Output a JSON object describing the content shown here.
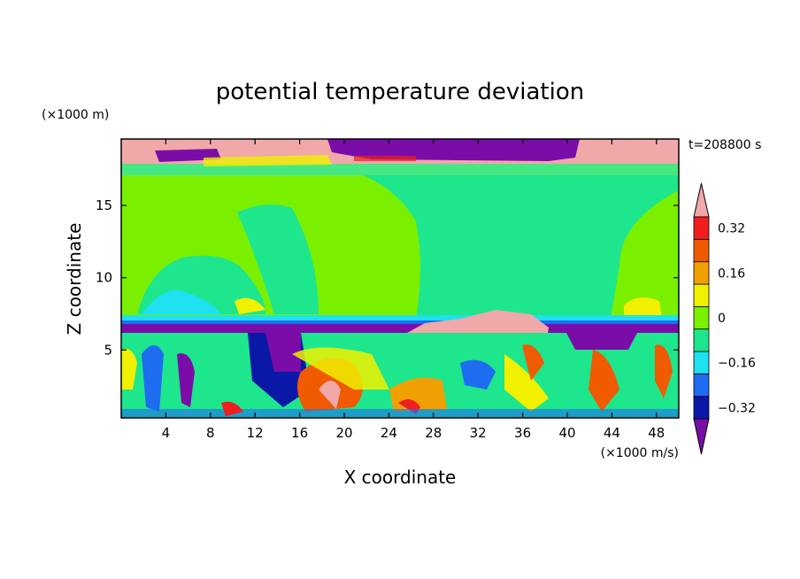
{
  "chart_data": {
    "type": "heatmap",
    "title": "potential temperature deviation",
    "xlabel": "X coordinate",
    "ylabel": "Z coordinate",
    "x_unit": "(×1000 m/s)",
    "y_unit": "(×1000 m)",
    "time_label": "t=208800 s",
    "xlim": [
      0,
      50
    ],
    "ylim": [
      0.3,
      19.6
    ],
    "x_ticks": [
      4,
      8,
      12,
      16,
      20,
      24,
      28,
      32,
      36,
      40,
      44,
      48
    ],
    "y_ticks": [
      5,
      10,
      15
    ],
    "colorbar": {
      "levels": [
        -0.4,
        -0.32,
        -0.24,
        -0.16,
        -0.08,
        0,
        0.08,
        0.16,
        0.24,
        0.32,
        0.4
      ],
      "labeled_values": [
        0.32,
        0.16,
        0,
        -0.16,
        -0.32
      ],
      "labels": [
        "0.32",
        "0.16",
        "0",
        "−0.16",
        "−0.32"
      ],
      "colors": [
        "#7a0da8",
        "#0a18a8",
        "#1e6cf0",
        "#1ee0f0",
        "#1ee68c",
        "#7af000",
        "#f0f000",
        "#f0a000",
        "#f05a00",
        "#f01e1e",
        "#f0a8a8"
      ],
      "extend": "both"
    },
    "field_description": {
      "background": 0.04,
      "upper_band_z": [
        17,
        19
      ],
      "stable_layer_z": 6.6,
      "stable_layer_value": -0.4
    }
  }
}
